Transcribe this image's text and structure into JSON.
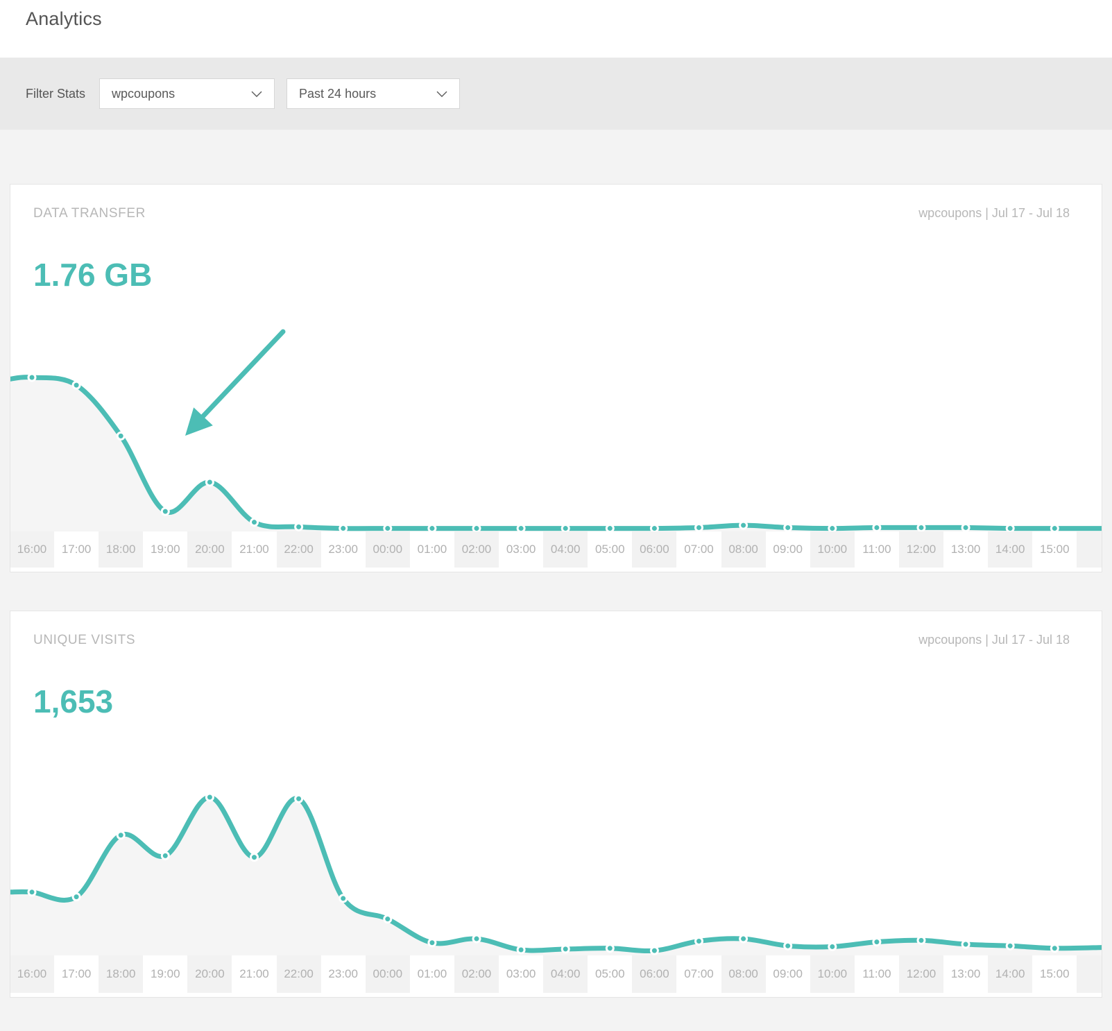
{
  "page": {
    "title": "Analytics"
  },
  "filter_bar": {
    "label": "Filter Stats",
    "site_select": {
      "value": "wpcoupons",
      "icon": "chevron-down-icon"
    },
    "range_select": {
      "value": "Past 24 hours",
      "icon": "chevron-down-icon"
    }
  },
  "colors": {
    "accent_teal": "#4cbdb5",
    "page_background": "#f3f3f3",
    "filter_bar_background": "#e9e9e9",
    "card_background": "#ffffff",
    "muted_text": "#b7b7b7",
    "dark_text": "#545454",
    "axis_band_gray": "#f2f2f2",
    "axis_band_white": "#ffffff",
    "area_fill": "#f5f5f5"
  },
  "chart_data": [
    {
      "type": "area",
      "title": "DATA TRANSFER",
      "context_label": "wpcoupons | Jul 17 - Jul 18",
      "total_label": "1.76 GB",
      "x": [
        "16:00",
        "17:00",
        "18:00",
        "19:00",
        "20:00",
        "21:00",
        "22:00",
        "23:00",
        "00:00",
        "01:00",
        "02:00",
        "03:00",
        "04:00",
        "05:00",
        "06:00",
        "07:00",
        "08:00",
        "09:00",
        "10:00",
        "11:00",
        "12:00",
        "13:00",
        "14:00",
        "15:00"
      ],
      "relative_values": [
        100,
        95,
        62,
        13,
        32,
        6,
        3,
        2,
        2,
        2,
        2,
        2,
        2,
        2,
        2,
        2.5,
        4,
        2.5,
        2,
        2.5,
        2.5,
        2.5,
        2,
        2
      ],
      "edge_left_rel": 99,
      "edge_right_rel": 2,
      "value_units": "percent of max hourly transfer (no y-axis shown)",
      "y_axis_shown": false,
      "grid": "alternating vertical bands in x-axis strip only",
      "legend": "none",
      "line_color": "#4cbdb5",
      "fill_color": "#f5f5f5",
      "point_style": "teal dot with white ring at every hour",
      "annotation": {
        "type": "arrow",
        "color": "#4cbdb5",
        "target": "dip between 19:00 and 20:00",
        "direction": "pointing down-left at the 19:00 low point"
      }
    },
    {
      "type": "area",
      "title": "UNIQUE VISITS",
      "context_label": "wpcoupons | Jul 17 - Jul 18",
      "total_label": "1,653",
      "x": [
        "16:00",
        "17:00",
        "18:00",
        "19:00",
        "20:00",
        "21:00",
        "22:00",
        "23:00",
        "00:00",
        "01:00",
        "02:00",
        "03:00",
        "04:00",
        "05:00",
        "06:00",
        "07:00",
        "08:00",
        "09:00",
        "10:00",
        "11:00",
        "12:00",
        "13:00",
        "14:00",
        "15:00"
      ],
      "relative_values": [
        40,
        37,
        76,
        63,
        100,
        62,
        99,
        36,
        23,
        8,
        10.5,
        3.5,
        4,
        4.5,
        3,
        9,
        10.5,
        6,
        5.5,
        8.5,
        9.5,
        7,
        6,
        4.5
      ],
      "edge_left_rel": 40,
      "edge_right_rel": 5,
      "value_units": "percent of max hourly visits (no y-axis shown)",
      "y_axis_shown": false,
      "grid": "alternating vertical bands in x-axis strip only",
      "legend": "none",
      "line_color": "#4cbdb5",
      "fill_color": "#f5f5f5",
      "point_style": "teal dot with white ring at every hour",
      "annotation": null
    }
  ]
}
